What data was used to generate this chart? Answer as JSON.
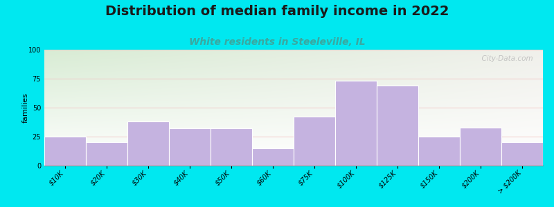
{
  "title": "Distribution of median family income in 2022",
  "subtitle": "White residents in Steeleville, IL",
  "ylabel": "families",
  "categories": [
    "$10K",
    "$20K",
    "$30K",
    "$40K",
    "$50K",
    "$60K",
    "$75K",
    "$100K",
    "$125K",
    "$150K",
    "$200K",
    "> $200K"
  ],
  "values": [
    25,
    20,
    38,
    32,
    32,
    15,
    42,
    73,
    69,
    25,
    33,
    20
  ],
  "bar_color": "#c5b3e0",
  "bar_edgecolor": "#ffffff",
  "ylim": [
    0,
    100
  ],
  "yticks": [
    0,
    25,
    50,
    75,
    100
  ],
  "background_outer": "#00e8f0",
  "bg_left_color": "#d8ecd4",
  "bg_right_color": "#f5f5f0",
  "title_fontsize": 14,
  "subtitle_fontsize": 10,
  "subtitle_color": "#3aa8a0",
  "ylabel_fontsize": 8,
  "watermark_text": "  City-Data.com",
  "tick_label_fontsize": 7,
  "bar_linewidth": 0.8
}
